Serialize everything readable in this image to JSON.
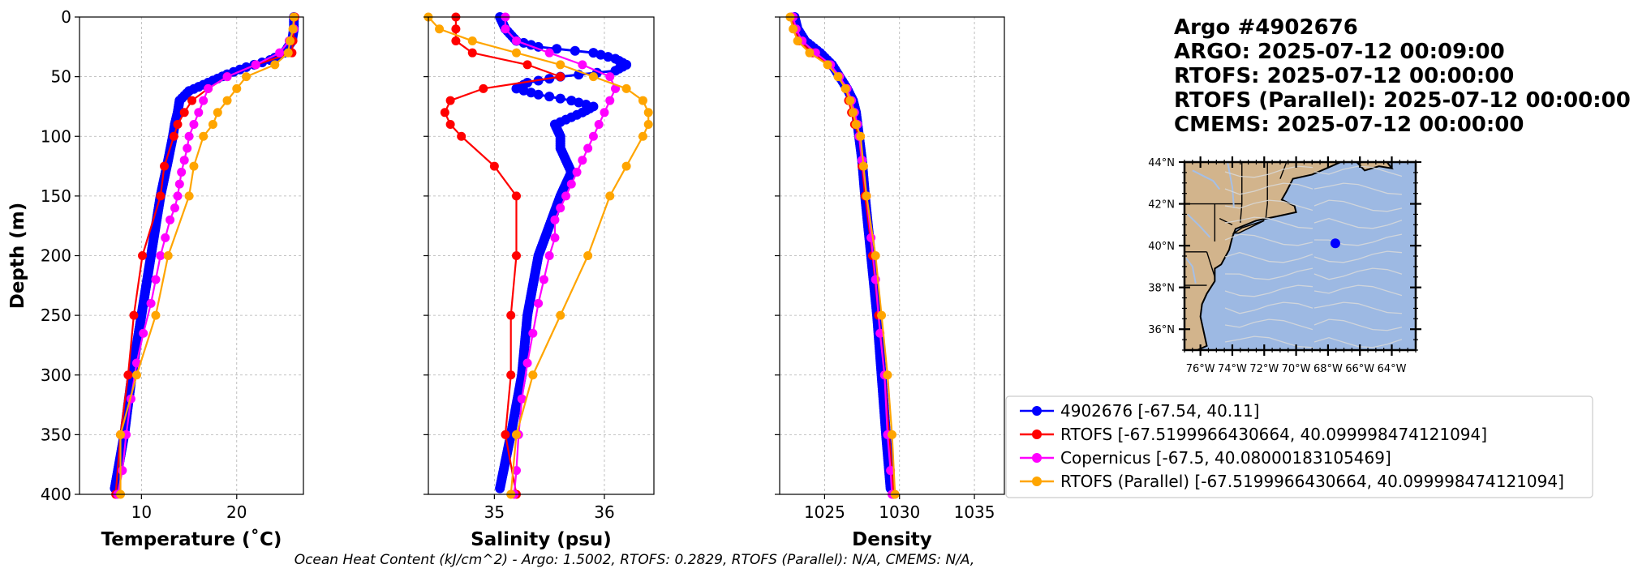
{
  "header": {
    "lines": [
      "Argo #4902676",
      "ARGO:  2025-07-12 00:09:00",
      "RTOFS: 2025-07-12 00:00:00",
      "RTOFS (Parallel): 2025-07-12 00:00:00",
      "CMEMS: 2025-07-12 00:00:00"
    ]
  },
  "footer_text": "Ocean Heat Content (kJ/cm^2) - Argo: 1.5002,  RTOFS: 0.2829,  RTOFS (Parallel): N/A,  CMEMS: N/A,",
  "colors": {
    "argo": "#0000ff",
    "rtofs": "#ff0000",
    "copernicus": "#ff00ff",
    "rtofs_parallel": "#ffa500",
    "land": "#d2b48c",
    "ocean": "#9db9e3",
    "stream": "#d9d9d9"
  },
  "legend": [
    {
      "label": "4902676 [-67.54, 40.11]",
      "color": "#0000ff"
    },
    {
      "label": "RTOFS [-67.5199966430664, 40.099998474121094]",
      "color": "#ff0000"
    },
    {
      "label": "Copernicus [-67.5, 40.08000183105469]",
      "color": "#ff00ff"
    },
    {
      "label": "RTOFS (Parallel) [-67.5199966430664, 40.099998474121094]",
      "color": "#ffa500"
    }
  ],
  "map": {
    "lat_ticks": [
      "44°N",
      "42°N",
      "40°N",
      "38°N",
      "36°N"
    ],
    "lon_ticks": [
      "76°W",
      "74°W",
      "72°W",
      "70°W",
      "68°W",
      "66°W",
      "64°W"
    ],
    "lon_range": [
      -77,
      -62.5
    ],
    "lat_range": [
      35,
      44
    ],
    "float_position": [
      -67.54,
      40.11
    ]
  },
  "chart_data": [
    {
      "type": "line",
      "xlabel": "Temperature (˚C)",
      "ylabel": "Depth (m)",
      "xlim": [
        3.5,
        27
      ],
      "ylim": [
        400,
        0
      ],
      "xticks": [
        10,
        20
      ],
      "yticks": [
        0,
        50,
        100,
        150,
        200,
        250,
        300,
        350,
        400
      ],
      "series": [
        {
          "name": "4902676",
          "color": "#0000ff",
          "dense": true,
          "depth": [
            0,
            10,
            20,
            30,
            36,
            42,
            48,
            55,
            62,
            70,
            80,
            90,
            100,
            120,
            150,
            200,
            250,
            300,
            350,
            395
          ],
          "values": [
            26,
            26,
            25.8,
            25,
            23.5,
            21,
            19,
            17,
            15,
            14,
            13.8,
            13.5,
            13.3,
            12.8,
            12,
            11,
            10,
            9,
            8.2,
            7.2
          ]
        },
        {
          "name": "RTOFS",
          "color": "#ff0000",
          "depth": [
            0,
            10,
            20,
            30,
            40,
            50,
            60,
            70,
            80,
            90,
            100,
            125,
            150,
            200,
            250,
            300,
            350,
            400
          ],
          "values": [
            26.1,
            26,
            25.9,
            25.8,
            22,
            19,
            17,
            15.3,
            14.5,
            13.8,
            13.4,
            12.4,
            12,
            10.1,
            9.2,
            8.6,
            7.8,
            7.3
          ]
        },
        {
          "name": "Copernicus",
          "color": "#ff00ff",
          "depth": [
            0,
            10,
            20,
            30,
            40,
            50,
            60,
            70,
            80,
            90,
            100,
            110,
            120,
            130,
            140,
            150,
            160,
            170,
            185,
            200,
            220,
            240,
            265,
            290,
            320,
            350,
            380,
            400
          ],
          "values": [
            26,
            26,
            25.5,
            24.5,
            22,
            19,
            17,
            16.5,
            16,
            15.5,
            15,
            14.8,
            14.5,
            14.2,
            14,
            13.8,
            13.5,
            13,
            12.5,
            12,
            11.5,
            11,
            10.2,
            9.5,
            8.9,
            8.4,
            8,
            7.5
          ]
        },
        {
          "name": "RTOFS (Parallel)",
          "color": "#ffa500",
          "depth": [
            0,
            10,
            20,
            30,
            40,
            50,
            60,
            70,
            80,
            90,
            100,
            125,
            150,
            200,
            250,
            300,
            350,
            400
          ],
          "values": [
            26,
            25.9,
            25.6,
            25.4,
            24,
            21,
            20,
            19,
            18,
            17.5,
            16.5,
            15.5,
            15,
            12.8,
            11.5,
            9.5,
            7.8,
            7.8
          ]
        }
      ]
    },
    {
      "type": "line",
      "xlabel": "Salinity (psu)",
      "xlim": [
        34.4,
        36.45
      ],
      "ylim": [
        400,
        0
      ],
      "xticks": [
        35,
        36
      ],
      "yticks": [
        0,
        50,
        100,
        150,
        200,
        250,
        300,
        350,
        400
      ],
      "series": [
        {
          "name": "4902676",
          "color": "#0000ff",
          "dense": true,
          "depth": [
            0,
            10,
            20,
            25,
            30,
            35,
            40,
            45,
            50,
            55,
            60,
            65,
            70,
            75,
            80,
            90,
            100,
            110,
            120,
            130,
            150,
            200,
            250,
            300,
            350,
            395
          ],
          "values": [
            35.05,
            35.1,
            35.2,
            35.4,
            35.9,
            36.1,
            36.2,
            36.1,
            35.6,
            35.3,
            35.2,
            35.4,
            35.7,
            35.9,
            35.8,
            35.55,
            35.6,
            35.6,
            35.65,
            35.7,
            35.6,
            35.4,
            35.3,
            35.25,
            35.15,
            35.05
          ]
        },
        {
          "name": "RTOFS",
          "color": "#ff0000",
          "depth": [
            0,
            10,
            20,
            30,
            40,
            50,
            60,
            70,
            80,
            90,
            100,
            125,
            150,
            200,
            250,
            300,
            350,
            400
          ],
          "values": [
            34.65,
            34.65,
            34.65,
            34.8,
            35.3,
            35.6,
            34.9,
            34.6,
            34.55,
            34.6,
            34.7,
            35.0,
            35.2,
            35.2,
            35.15,
            35.15,
            35.1,
            35.2
          ]
        },
        {
          "name": "Copernicus",
          "color": "#ff00ff",
          "depth": [
            0,
            10,
            20,
            30,
            40,
            50,
            60,
            70,
            80,
            90,
            100,
            110,
            120,
            130,
            140,
            150,
            160,
            170,
            185,
            200,
            220,
            240,
            265,
            290,
            320,
            350,
            380,
            400
          ],
          "values": [
            35.1,
            35.1,
            35.2,
            35.5,
            35.8,
            36.05,
            36.1,
            36.05,
            36.0,
            35.95,
            35.9,
            35.85,
            35.8,
            35.75,
            35.7,
            35.65,
            35.6,
            35.55,
            35.55,
            35.5,
            35.45,
            35.4,
            35.35,
            35.3,
            35.25,
            35.22,
            35.2,
            35.18
          ]
        },
        {
          "name": "RTOFS (Parallel)",
          "color": "#ffa500",
          "depth": [
            0,
            10,
            20,
            30,
            40,
            50,
            60,
            70,
            80,
            90,
            100,
            125,
            150,
            200,
            250,
            300,
            350,
            400
          ],
          "values": [
            34.4,
            34.5,
            34.8,
            35.2,
            35.6,
            35.9,
            36.2,
            36.35,
            36.4,
            36.4,
            36.35,
            36.2,
            36.05,
            35.85,
            35.6,
            35.35,
            35.2,
            35.15
          ]
        }
      ]
    },
    {
      "type": "line",
      "xlabel": "Density",
      "xlim": [
        1022,
        1037
      ],
      "ylim": [
        400,
        0
      ],
      "xticks": [
        1025,
        1030,
        1035
      ],
      "yticks": [
        0,
        50,
        100,
        150,
        200,
        250,
        300,
        350,
        400
      ],
      "series": [
        {
          "name": "4902676",
          "color": "#0000ff",
          "dense": true,
          "depth": [
            0,
            10,
            20,
            30,
            40,
            50,
            60,
            70,
            80,
            90,
            100,
            120,
            150,
            200,
            250,
            300,
            350,
            395
          ],
          "values": [
            1023,
            1023.2,
            1023.7,
            1024.7,
            1025.5,
            1026,
            1026.5,
            1026.9,
            1027.1,
            1027.2,
            1027.3,
            1027.5,
            1027.7,
            1028.1,
            1028.5,
            1028.8,
            1029.1,
            1029.4
          ]
        },
        {
          "name": "RTOFS",
          "color": "#ff0000",
          "depth": [
            0,
            10,
            20,
            30,
            40,
            50,
            60,
            70,
            80,
            90,
            100,
            125,
            150,
            200,
            250,
            300,
            350,
            400
          ],
          "values": [
            1022.8,
            1023,
            1023.3,
            1024.2,
            1025.3,
            1026,
            1026.4,
            1026.6,
            1026.8,
            1027,
            1027.3,
            1027.5,
            1027.7,
            1028.2,
            1028.6,
            1029,
            1029.3,
            1029.6
          ]
        },
        {
          "name": "Copernicus",
          "color": "#ff00ff",
          "depth": [
            0,
            10,
            20,
            30,
            40,
            50,
            60,
            70,
            80,
            90,
            100,
            120,
            150,
            185,
            220,
            265,
            300,
            350,
            380,
            400
          ],
          "values": [
            1022.9,
            1023.1,
            1023.5,
            1024.4,
            1025.4,
            1026,
            1026.5,
            1026.8,
            1027,
            1027.2,
            1027.3,
            1027.5,
            1027.8,
            1028.1,
            1028.4,
            1028.7,
            1029,
            1029.2,
            1029.4,
            1029.5
          ]
        },
        {
          "name": "RTOFS (Parallel)",
          "color": "#ffa500",
          "depth": [
            0,
            10,
            20,
            30,
            40,
            50,
            60,
            70,
            80,
            90,
            100,
            125,
            150,
            200,
            250,
            300,
            350,
            400
          ],
          "values": [
            1022.7,
            1022.9,
            1023.2,
            1024,
            1025.2,
            1025.9,
            1026.4,
            1026.7,
            1026.9,
            1027.1,
            1027.4,
            1027.6,
            1027.8,
            1028.4,
            1028.8,
            1029.2,
            1029.5,
            1029.7
          ]
        }
      ]
    }
  ]
}
